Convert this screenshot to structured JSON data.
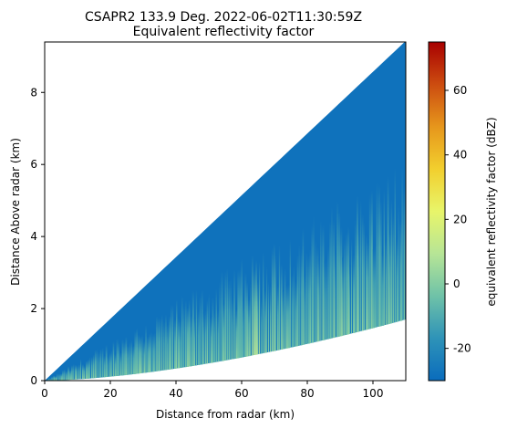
{
  "chart_data": {
    "type": "heatmap",
    "title_line1": "CSAPR2 133.9 Deg. 2022-06-02T11:30:59Z",
    "title_line2": "Equivalent reflectivity factor",
    "xlabel": "Distance from radar (km)",
    "ylabel": "Distance Above radar  (km)",
    "xlim": [
      0,
      110
    ],
    "ylim": [
      0,
      9.4
    ],
    "x_ticks": [
      0,
      20,
      40,
      60,
      80,
      100
    ],
    "y_ticks": [
      0,
      2,
      4,
      6,
      8
    ],
    "colorbar": {
      "label": "equivalent reflectivity factor (dBZ)",
      "range": [
        -30,
        75
      ],
      "ticks": [
        -20,
        0,
        20,
        40,
        60
      ],
      "colormap": "HomeyerRainbow",
      "colors": [
        "#0a6cbd",
        "#2e93b8",
        "#6fc2a8",
        "#b7e596",
        "#e8f56a",
        "#f2cf2e",
        "#e6961c",
        "#cc4c10",
        "#a80000"
      ]
    },
    "beam_geometry": {
      "upper_edge_elevation_deg": 4.9,
      "lower_edge_top_height_km": 1.7
    },
    "fields": {
      "background_dbz": -28,
      "low_layer_top_km_at_max_range": 5.0,
      "low_layer_dbz_near_ground": 2,
      "feature_range_km": 64,
      "feature_dbz": 8
    },
    "grid": false
  }
}
